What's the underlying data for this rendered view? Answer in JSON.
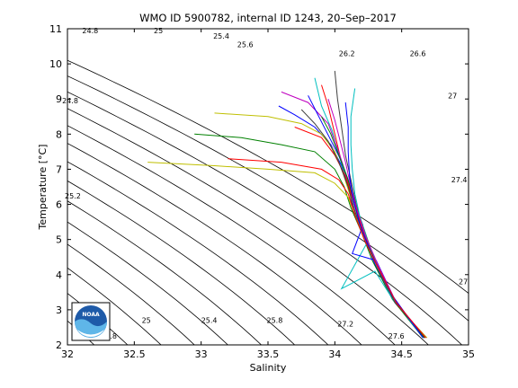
{
  "chart_data": {
    "type": "line",
    "title": "WMO ID 5900782, internal ID 1243, 20–Sep–2017",
    "xlabel": "Salinity",
    "ylabel": "Temperature [°C]",
    "xlim": [
      32,
      35
    ],
    "ylim": [
      2,
      11
    ],
    "x_ticks": [
      32,
      32.5,
      33,
      33.5,
      34,
      34.5,
      35
    ],
    "x_tick_labels": [
      "32",
      "32.5",
      "33",
      "33.5",
      "34",
      "34.5",
      "35"
    ],
    "y_ticks": [
      2,
      3,
      4,
      5,
      6,
      7,
      8,
      9,
      10,
      11
    ],
    "y_tick_labels": [
      "2",
      "3",
      "4",
      "5",
      "6",
      "7",
      "8",
      "9",
      "10",
      "11"
    ],
    "grid": false,
    "legend": "none",
    "isopycnals": [
      {
        "label": "24.8",
        "s0": 31.7
      },
      {
        "label": "25",
        "s0": 31.95
      },
      {
        "label": "25.2",
        "s0": 32.2
      },
      {
        "label": "25.4",
        "s0": 32.45
      },
      {
        "label": "25.6",
        "s0": 32.7
      },
      {
        "label": "25.8",
        "s0": 32.95
      },
      {
        "label": "26",
        "s0": 33.2
      },
      {
        "label": "26.2",
        "s0": 33.45
      },
      {
        "label": "26.4",
        "s0": 33.7
      },
      {
        "label": "26.6",
        "s0": 33.95
      },
      {
        "label": "26.8",
        "s0": 34.2
      },
      {
        "label": "27",
        "s0": 34.45
      },
      {
        "label": "27.2",
        "s0": 34.7
      },
      {
        "label": "27.4",
        "s0": 34.95
      },
      {
        "label": "27.6",
        "s0": 35.2
      },
      {
        "label": "27.8",
        "s0": 35.45
      }
    ],
    "isopycnal_labels": [
      {
        "text": "24.8",
        "s": 32.17,
        "t": 10.95
      },
      {
        "text": "25",
        "s": 32.68,
        "t": 10.95
      },
      {
        "text": "25.4",
        "s": 33.15,
        "t": 10.8
      },
      {
        "text": "25.6",
        "s": 33.33,
        "t": 10.55
      },
      {
        "text": "26.2",
        "s": 34.09,
        "t": 10.3
      },
      {
        "text": "26.6",
        "s": 34.62,
        "t": 10.3
      },
      {
        "text": "27",
        "s": 34.88,
        "t": 9.1
      },
      {
        "text": "24.8",
        "s": 32.02,
        "t": 8.95
      },
      {
        "text": "25.2",
        "s": 32.04,
        "t": 6.25
      },
      {
        "text": "27.4",
        "s": 34.93,
        "t": 6.7
      },
      {
        "text": "27",
        "s": 34.96,
        "t": 3.8
      },
      {
        "text": "25",
        "s": 32.59,
        "t": 2.7
      },
      {
        "text": "25.4",
        "s": 33.06,
        "t": 2.7
      },
      {
        "text": "25.8",
        "s": 33.55,
        "t": 2.7
      },
      {
        "text": "27.2",
        "s": 34.08,
        "t": 2.6
      },
      {
        "text": "27.6",
        "s": 34.46,
        "t": 2.25
      },
      {
        "text": "24.8",
        "s": 32.31,
        "t": 2.25
      }
    ],
    "series_colors": [
      "#0000ff",
      "#008000",
      "#ff0000",
      "#00bfbf",
      "#bf00bf",
      "#bfbf00",
      "#404040"
    ],
    "series": [
      {
        "color": "#0000ff",
        "points": [
          [
            33.58,
            8.8
          ],
          [
            33.7,
            8.55
          ],
          [
            33.85,
            8.2
          ],
          [
            33.97,
            7.7
          ],
          [
            34.05,
            7.1
          ],
          [
            34.1,
            6.5
          ],
          [
            34.14,
            5.8
          ],
          [
            34.22,
            5.1
          ],
          [
            34.3,
            4.3
          ],
          [
            34.45,
            3.2
          ],
          [
            34.68,
            2.2
          ]
        ]
      },
      {
        "color": "#008000",
        "points": [
          [
            32.95,
            8.0
          ],
          [
            33.3,
            7.9
          ],
          [
            33.6,
            7.7
          ],
          [
            33.85,
            7.5
          ],
          [
            34.0,
            7.0
          ],
          [
            34.07,
            6.5
          ],
          [
            34.12,
            5.9
          ],
          [
            34.2,
            5.2
          ],
          [
            34.28,
            4.4
          ],
          [
            34.43,
            3.3
          ],
          [
            34.66,
            2.2
          ]
        ]
      },
      {
        "color": "#ff0000",
        "points": [
          [
            33.9,
            9.4
          ],
          [
            33.95,
            8.8
          ],
          [
            34.0,
            8.0
          ],
          [
            34.05,
            7.2
          ],
          [
            34.1,
            6.6
          ],
          [
            34.15,
            6.0
          ],
          [
            34.2,
            5.3
          ],
          [
            34.29,
            4.5
          ],
          [
            34.44,
            3.3
          ],
          [
            34.67,
            2.2
          ]
        ]
      },
      {
        "color": "#00bfbf",
        "points": [
          [
            33.85,
            9.6
          ],
          [
            33.9,
            8.8
          ],
          [
            33.98,
            8.1
          ],
          [
            34.03,
            7.4
          ],
          [
            34.08,
            6.8
          ],
          [
            34.13,
            6.1
          ],
          [
            34.18,
            5.4
          ],
          [
            34.24,
            4.9
          ],
          [
            34.05,
            3.6
          ],
          [
            34.3,
            4.1
          ],
          [
            34.45,
            3.2
          ],
          [
            34.68,
            2.2
          ]
        ]
      },
      {
        "color": "#bf00bf",
        "points": [
          [
            33.6,
            9.2
          ],
          [
            33.8,
            8.9
          ],
          [
            33.95,
            8.3
          ],
          [
            34.02,
            7.6
          ],
          [
            34.08,
            6.9
          ],
          [
            34.12,
            6.2
          ],
          [
            34.18,
            5.5
          ],
          [
            34.26,
            4.7
          ],
          [
            34.42,
            3.4
          ],
          [
            34.65,
            2.25
          ]
        ]
      },
      {
        "color": "#bfbf00",
        "points": [
          [
            32.6,
            7.2
          ],
          [
            33.1,
            7.1
          ],
          [
            33.5,
            7.0
          ],
          [
            33.85,
            6.9
          ],
          [
            34.0,
            6.6
          ],
          [
            34.1,
            6.2
          ],
          [
            34.16,
            5.6
          ],
          [
            34.24,
            4.9
          ],
          [
            34.32,
            4.2
          ],
          [
            34.47,
            3.1
          ],
          [
            34.69,
            2.2
          ]
        ]
      },
      {
        "color": "#404040",
        "points": [
          [
            34.0,
            9.8
          ],
          [
            34.02,
            9.0
          ],
          [
            34.05,
            8.2
          ],
          [
            34.08,
            7.4
          ],
          [
            34.12,
            6.7
          ],
          [
            34.16,
            6.0
          ],
          [
            34.21,
            5.3
          ],
          [
            34.29,
            4.5
          ],
          [
            34.44,
            3.3
          ],
          [
            34.67,
            2.2
          ]
        ]
      },
      {
        "color": "#bfbf00",
        "points": [
          [
            33.1,
            8.6
          ],
          [
            33.5,
            8.5
          ],
          [
            33.75,
            8.3
          ],
          [
            33.9,
            8.0
          ],
          [
            34.0,
            7.5
          ],
          [
            34.06,
            6.9
          ],
          [
            34.11,
            6.3
          ],
          [
            34.17,
            5.6
          ],
          [
            34.25,
            4.8
          ],
          [
            34.41,
            3.5
          ],
          [
            34.64,
            2.3
          ]
        ]
      },
      {
        "color": "#0000ff",
        "points": [
          [
            33.8,
            9.1
          ],
          [
            33.88,
            8.5
          ],
          [
            33.96,
            7.9
          ],
          [
            34.04,
            7.3
          ],
          [
            34.1,
            6.7
          ],
          [
            34.15,
            6.0
          ],
          [
            34.21,
            5.4
          ],
          [
            34.13,
            4.6
          ],
          [
            34.31,
            4.4
          ],
          [
            34.46,
            3.2
          ],
          [
            34.68,
            2.2
          ]
        ]
      },
      {
        "color": "#ff0000",
        "points": [
          [
            33.7,
            8.2
          ],
          [
            33.9,
            7.9
          ],
          [
            34.0,
            7.4
          ],
          [
            34.08,
            6.8
          ],
          [
            34.13,
            6.2
          ],
          [
            34.19,
            5.5
          ],
          [
            34.27,
            4.6
          ],
          [
            34.43,
            3.4
          ],
          [
            34.66,
            2.2
          ]
        ]
      },
      {
        "color": "#008000",
        "points": [
          [
            33.9,
            8.5
          ],
          [
            33.97,
            8.0
          ],
          [
            34.03,
            7.4
          ],
          [
            34.09,
            6.8
          ],
          [
            34.14,
            6.2
          ],
          [
            34.2,
            5.5
          ],
          [
            34.28,
            4.6
          ],
          [
            34.44,
            3.3
          ],
          [
            34.67,
            2.2
          ]
        ]
      },
      {
        "color": "#00bfbf",
        "points": [
          [
            34.15,
            9.3
          ],
          [
            34.12,
            8.5
          ],
          [
            34.12,
            7.7
          ],
          [
            34.13,
            7.0
          ],
          [
            34.15,
            6.3
          ],
          [
            34.19,
            5.6
          ],
          [
            34.26,
            4.8
          ],
          [
            34.42,
            3.4
          ],
          [
            34.66,
            2.2
          ]
        ]
      },
      {
        "color": "#bf00bf",
        "points": [
          [
            33.95,
            9.0
          ],
          [
            34.0,
            8.4
          ],
          [
            34.04,
            7.8
          ],
          [
            34.08,
            7.2
          ],
          [
            34.12,
            6.5
          ],
          [
            34.17,
            5.8
          ],
          [
            34.23,
            5.1
          ],
          [
            34.32,
            4.3
          ],
          [
            34.46,
            3.2
          ],
          [
            34.68,
            2.2
          ]
        ]
      },
      {
        "color": "#404040",
        "points": [
          [
            33.75,
            8.7
          ],
          [
            33.85,
            8.3
          ],
          [
            33.95,
            7.8
          ],
          [
            34.03,
            7.2
          ],
          [
            34.1,
            6.5
          ],
          [
            34.15,
            5.8
          ],
          [
            34.22,
            5.1
          ],
          [
            34.31,
            4.3
          ],
          [
            34.45,
            3.2
          ],
          [
            34.68,
            2.2
          ]
        ]
      },
      {
        "color": "#0000ff",
        "points": [
          [
            34.08,
            8.9
          ],
          [
            34.1,
            8.2
          ],
          [
            34.1,
            7.5
          ],
          [
            34.11,
            6.8
          ],
          [
            34.14,
            6.1
          ],
          [
            34.19,
            5.4
          ],
          [
            34.27,
            4.6
          ],
          [
            34.43,
            3.4
          ],
          [
            34.66,
            2.2
          ]
        ]
      },
      {
        "color": "#ff0000",
        "points": [
          [
            33.2,
            7.3
          ],
          [
            33.6,
            7.2
          ],
          [
            33.9,
            7.0
          ],
          [
            34.03,
            6.7
          ],
          [
            34.1,
            6.3
          ],
          [
            34.15,
            5.7
          ],
          [
            34.22,
            5.0
          ],
          [
            34.31,
            4.3
          ],
          [
            34.46,
            3.2
          ],
          [
            34.68,
            2.2
          ]
        ]
      }
    ],
    "annotations": [
      "NOAA"
    ]
  }
}
